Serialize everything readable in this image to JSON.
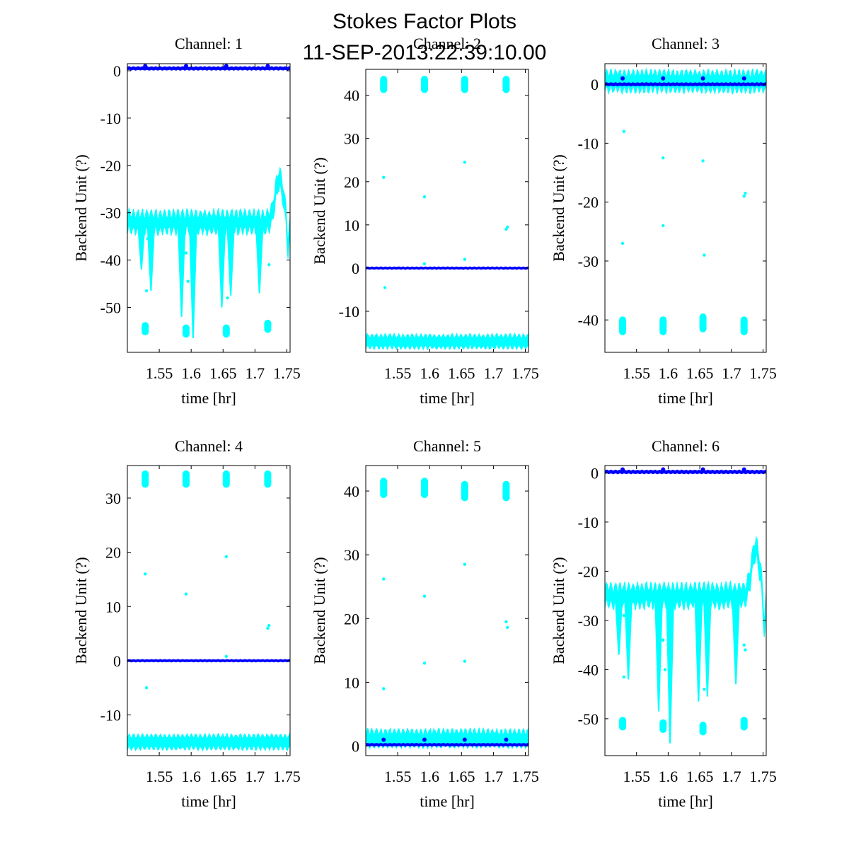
{
  "figure": {
    "title": "Stokes Factor Plots",
    "subtitle": "11-SEP-2013:22:39:10.00"
  },
  "colors": {
    "series_a": "#00ffff",
    "series_b": "#0000ff",
    "axes": "#000000"
  },
  "chart_data": [
    {
      "type": "scatter",
      "title": "Channel: 1",
      "xlabel": "time [hr]",
      "ylabel": "Backend Unit (?)",
      "xlim": [
        1.5,
        1.755
      ],
      "ylim": [
        -59.5,
        1.5
      ],
      "xticks": [
        1.55,
        1.6,
        1.65,
        1.7,
        1.75
      ],
      "xtick_labels": [
        "1.55",
        "1.6",
        "1.65",
        "1.7",
        "1.75"
      ],
      "yticks": [
        0,
        -10,
        -20,
        -30,
        -40,
        -50
      ],
      "ytick_labels": [
        "0",
        "-10",
        "-20",
        "-30",
        "-40",
        "-50"
      ],
      "cal_times": [
        1.528,
        1.592,
        1.655,
        1.72
      ],
      "series": [
        {
          "name": "cyan",
          "color": "#00ffff",
          "baseline": -32,
          "noise": 2.5,
          "band": 1.0,
          "dips": [
            [
              1.522,
              -42
            ],
            [
              1.537,
              -46.5
            ],
            [
              1.585,
              -52
            ],
            [
              1.603,
              -56.5
            ],
            [
              1.648,
              -50
            ],
            [
              1.662,
              -47.5
            ],
            [
              1.707,
              -47
            ]
          ],
          "bump": [
            1.738,
            9,
            0.009
          ],
          "bump_drop": [
            1.752,
            -38.5
          ],
          "clusters": [
            [
              1.528,
              -54.5,
              1.4
            ],
            [
              1.592,
              -55,
              1.4
            ],
            [
              1.655,
              -55,
              1.4
            ],
            [
              1.72,
              -54,
              1.4
            ]
          ],
          "strays": [
            [
              1.53,
              -46.5
            ],
            [
              1.532,
              -35.5
            ],
            [
              1.592,
              -38.5
            ],
            [
              1.595,
              -44.5
            ],
            [
              1.657,
              -48
            ],
            [
              1.722,
              -41
            ]
          ]
        },
        {
          "name": "blue",
          "color": "#0000ff",
          "baseline": 0.5,
          "noise": 0.2,
          "band": 0.4,
          "spikes": [
            [
              1.528,
              1.0
            ],
            [
              1.592,
              1.0
            ],
            [
              1.655,
              1.0
            ],
            [
              1.72,
              1.0
            ]
          ]
        }
      ]
    },
    {
      "type": "scatter",
      "title": "Channel: 2",
      "xlabel": "time [hr]",
      "ylabel": "Backend Unit (?)",
      "xlim": [
        1.5,
        1.755
      ],
      "ylim": [
        -19.5,
        46
      ],
      "xticks": [
        1.55,
        1.6,
        1.65,
        1.7,
        1.75
      ],
      "xtick_labels": [
        "1.55",
        "1.6",
        "1.65",
        "1.7",
        "1.75"
      ],
      "yticks": [
        40,
        30,
        20,
        10,
        0,
        -10
      ],
      "ytick_labels": [
        "40",
        "30",
        "20",
        "10",
        "0",
        "-10"
      ],
      "cal_times": [
        1.528,
        1.592,
        1.655,
        1.72
      ],
      "series": [
        {
          "name": "cyan",
          "color": "#00ffff",
          "baseline": -17,
          "noise": 1.2,
          "band": 1.4,
          "clusters": [
            [
              1.528,
              42.5,
              2.0
            ],
            [
              1.592,
              42.5,
              2.0
            ],
            [
              1.655,
              42.5,
              2.0
            ],
            [
              1.72,
              42.5,
              2.0
            ]
          ],
          "strays": [
            [
              1.528,
              21
            ],
            [
              1.592,
              16.5
            ],
            [
              1.592,
              1.0
            ],
            [
              1.655,
              24.5
            ],
            [
              1.655,
              2.0
            ],
            [
              1.72,
              9.0
            ],
            [
              1.722,
              9.5
            ],
            [
              1.53,
              -4.5
            ]
          ]
        },
        {
          "name": "blue",
          "color": "#0000ff",
          "baseline": 0,
          "noise": 0.15,
          "band": 0.3,
          "spikes": []
        }
      ]
    },
    {
      "type": "scatter",
      "title": "Channel: 3",
      "xlabel": "time [hr]",
      "ylabel": "Backend Unit (?)",
      "xlim": [
        1.5,
        1.755
      ],
      "ylim": [
        -45.5,
        3.5
      ],
      "xticks": [
        1.55,
        1.6,
        1.65,
        1.7,
        1.75
      ],
      "xtick_labels": [
        "1.55",
        "1.6",
        "1.65",
        "1.7",
        "1.75"
      ],
      "yticks": [
        0,
        -10,
        -20,
        -30,
        -40
      ],
      "ytick_labels": [
        "0",
        "-10",
        "-20",
        "-30",
        "-40"
      ],
      "cal_times": [
        1.528,
        1.592,
        1.655,
        1.72
      ],
      "series": [
        {
          "name": "cyan",
          "color": "#00ffff",
          "baseline": 0.5,
          "noise": 1.6,
          "band": 1.2,
          "clusters": [
            [
              1.528,
              -41,
              1.6
            ],
            [
              1.592,
              -41,
              1.6
            ],
            [
              1.655,
              -40.5,
              1.6
            ],
            [
              1.72,
              -41,
              1.6
            ]
          ],
          "strays": [
            [
              1.53,
              -8
            ],
            [
              1.592,
              -12.5
            ],
            [
              1.592,
              -24
            ],
            [
              1.655,
              -13
            ],
            [
              1.657,
              -29
            ],
            [
              1.722,
              -18.5
            ],
            [
              1.72,
              -19
            ],
            [
              1.528,
              -27
            ]
          ]
        },
        {
          "name": "blue",
          "color": "#0000ff",
          "baseline": 0,
          "noise": 0.15,
          "band": 0.3,
          "spikes": [
            [
              1.528,
              1.0
            ],
            [
              1.592,
              1.0
            ],
            [
              1.655,
              1.0
            ],
            [
              1.72,
              1.0
            ]
          ]
        }
      ]
    },
    {
      "type": "scatter",
      "title": "Channel: 4",
      "xlabel": "time [hr]",
      "ylabel": "Backend Unit (?)",
      "xlim": [
        1.5,
        1.755
      ],
      "ylim": [
        -17.5,
        36
      ],
      "xticks": [
        1.55,
        1.6,
        1.65,
        1.7,
        1.75
      ],
      "xtick_labels": [
        "1.55",
        "1.6",
        "1.65",
        "1.7",
        "1.75"
      ],
      "yticks": [
        30,
        20,
        10,
        0,
        -10
      ],
      "ytick_labels": [
        "30",
        "20",
        "10",
        "0",
        "-10"
      ],
      "cal_times": [
        1.528,
        1.592,
        1.655,
        1.72
      ],
      "series": [
        {
          "name": "cyan",
          "color": "#00ffff",
          "baseline": -15,
          "noise": 1.0,
          "band": 1.2,
          "clusters": [
            [
              1.528,
              33.5,
              1.6
            ],
            [
              1.592,
              33.5,
              1.6
            ],
            [
              1.655,
              33.5,
              1.6
            ],
            [
              1.72,
              33.5,
              1.6
            ]
          ],
          "strays": [
            [
              1.528,
              16
            ],
            [
              1.592,
              12.3
            ],
            [
              1.655,
              19.2
            ],
            [
              1.655,
              0.8
            ],
            [
              1.72,
              6
            ],
            [
              1.722,
              6.5
            ],
            [
              1.53,
              -5
            ]
          ]
        },
        {
          "name": "blue",
          "color": "#0000ff",
          "baseline": 0,
          "noise": 0.12,
          "band": 0.25,
          "spikes": []
        }
      ]
    },
    {
      "type": "scatter",
      "title": "Channel: 5",
      "xlabel": "time [hr]",
      "ylabel": "Backend Unit (?)",
      "xlim": [
        1.5,
        1.755
      ],
      "ylim": [
        -1.5,
        44
      ],
      "xticks": [
        1.55,
        1.6,
        1.65,
        1.7,
        1.75
      ],
      "xtick_labels": [
        "1.55",
        "1.6",
        "1.65",
        "1.7",
        "1.75"
      ],
      "yticks": [
        40,
        30,
        20,
        10,
        0
      ],
      "ytick_labels": [
        "40",
        "30",
        "20",
        "10",
        "0"
      ],
      "cal_times": [
        1.528,
        1.592,
        1.655,
        1.72
      ],
      "series": [
        {
          "name": "cyan",
          "color": "#00ffff",
          "baseline": 1.2,
          "noise": 1.2,
          "band": 0.9,
          "clusters": [
            [
              1.528,
              40.5,
              1.6
            ],
            [
              1.592,
              40.5,
              1.6
            ],
            [
              1.655,
              40,
              1.6
            ],
            [
              1.72,
              40,
              1.6
            ]
          ],
          "strays": [
            [
              1.528,
              26.2
            ],
            [
              1.528,
              9
            ],
            [
              1.592,
              23.5
            ],
            [
              1.592,
              13
            ],
            [
              1.655,
              28.5
            ],
            [
              1.655,
              13.3
            ],
            [
              1.72,
              19.5
            ],
            [
              1.722,
              18.6
            ]
          ]
        },
        {
          "name": "blue",
          "color": "#0000ff",
          "baseline": 0.2,
          "noise": 0.12,
          "band": 0.25,
          "spikes": [
            [
              1.528,
              1.0
            ],
            [
              1.592,
              1.0
            ],
            [
              1.655,
              1.0
            ],
            [
              1.72,
              1.0
            ]
          ]
        }
      ]
    },
    {
      "type": "scatter",
      "title": "Channel: 6",
      "xlabel": "time [hr]",
      "ylabel": "Backend Unit (?)",
      "xlim": [
        1.5,
        1.755
      ],
      "ylim": [
        -57.5,
        1.5
      ],
      "xticks": [
        1.55,
        1.6,
        1.65,
        1.7,
        1.75
      ],
      "xtick_labels": [
        "1.55",
        "1.6",
        "1.65",
        "1.7",
        "1.75"
      ],
      "yticks": [
        0,
        -10,
        -20,
        -30,
        -40,
        -50
      ],
      "ytick_labels": [
        "0",
        "-10",
        "-20",
        "-30",
        "-40",
        "-50"
      ],
      "cal_times": [
        1.528,
        1.592,
        1.655,
        1.72
      ],
      "series": [
        {
          "name": "cyan",
          "color": "#00ffff",
          "baseline": -25,
          "noise": 2.5,
          "band": 1.0,
          "dips": [
            [
              1.522,
              -37
            ],
            [
              1.537,
              -42
            ],
            [
              1.585,
              -48.5
            ],
            [
              1.603,
              -55
            ],
            [
              1.648,
              -46.5
            ],
            [
              1.662,
              -45.5
            ],
            [
              1.707,
              -43
            ]
          ],
          "bump": [
            1.738,
            9.5,
            0.009
          ],
          "bump_drop": [
            1.752,
            -32.5
          ],
          "clusters": [
            [
              1.528,
              -51,
              1.4
            ],
            [
              1.592,
              -51.5,
              1.4
            ],
            [
              1.655,
              -52,
              1.4
            ],
            [
              1.72,
              -51,
              1.4
            ]
          ],
          "strays": [
            [
              1.53,
              -41.5
            ],
            [
              1.53,
              -29
            ],
            [
              1.592,
              -34
            ],
            [
              1.595,
              -40
            ],
            [
              1.657,
              -44
            ],
            [
              1.72,
              -35
            ],
            [
              1.722,
              -36
            ]
          ]
        },
        {
          "name": "blue",
          "color": "#0000ff",
          "baseline": 0.2,
          "noise": 0.2,
          "band": 0.4,
          "spikes": [
            [
              1.528,
              0.7
            ],
            [
              1.592,
              0.7
            ],
            [
              1.655,
              0.7
            ],
            [
              1.72,
              0.7
            ]
          ]
        }
      ]
    }
  ]
}
